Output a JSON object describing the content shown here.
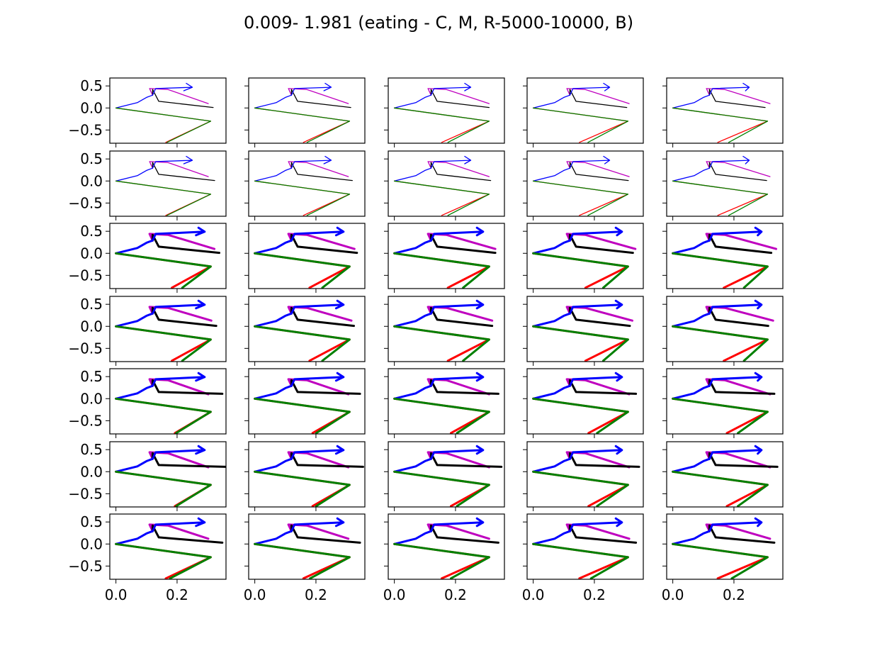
{
  "figure": {
    "title": "0.009- 1.981 (eating - C, M, R-5000-10000, B)"
  },
  "chart_data": {
    "type": "line",
    "title": "0.009- 1.981 (eating - C, M, R-5000-10000, B)",
    "layout": {
      "rows": 7,
      "cols": 5,
      "sharex": true,
      "sharey": true
    },
    "xlim": [
      -0.02,
      0.36
    ],
    "ylim": [
      -0.8,
      0.68
    ],
    "x_ticks": [
      0.0,
      0.2
    ],
    "x_tick_labels": [
      "0.0",
      "0.2"
    ],
    "y_ticks": [
      0.5,
      0.0,
      -0.5
    ],
    "y_tick_labels": [
      "0.5",
      "0.0",
      "−0.5"
    ],
    "grid": false,
    "series_colors": {
      "magenta": "#bf00bf",
      "black": "#000000",
      "blue": "#0000ff",
      "red": "#ff0000",
      "green": "#008000"
    },
    "skeleton": {
      "magenta": [
        [
          0.12,
          0.29
        ],
        [
          0.11,
          0.44
        ],
        [
          0.17,
          0.42
        ],
        [
          0.31,
          0.1
        ]
      ],
      "black": [
        [
          0.12,
          0.29
        ],
        [
          0.12,
          0.42
        ],
        [
          0.14,
          0.15
        ],
        [
          0.31,
          0.01
        ]
      ],
      "blue": [
        [
          0.0,
          0.0
        ],
        [
          0.07,
          0.12
        ],
        [
          0.1,
          0.24
        ],
        [
          0.12,
          0.29
        ],
        [
          0.13,
          0.44
        ],
        [
          0.25,
          0.47
        ],
        [
          0.23,
          0.56
        ],
        [
          0.25,
          0.47
        ],
        [
          0.23,
          0.39
        ]
      ],
      "red": [
        [
          0.0,
          0.0
        ],
        [
          0.31,
          -0.3
        ],
        [
          0.155,
          -0.78
        ]
      ],
      "green": [
        [
          0.0,
          0.0
        ],
        [
          0.31,
          -0.3
        ],
        [
          0.175,
          -0.78
        ]
      ]
    },
    "row_line_weights": [
      1.3,
      1.3,
      3.0,
      3.0,
      3.0,
      3.0,
      3.0
    ],
    "row_variations": [
      {
        "magenta": [
          0,
          0
        ],
        "black": [
          0,
          0
        ],
        "blue": [
          0,
          0
        ],
        "red_end": [
          0,
          0
        ],
        "green_end": [
          0,
          0
        ]
      },
      {
        "magenta": [
          0,
          0
        ],
        "black": [
          0.005,
          0
        ],
        "blue": [
          0,
          0
        ],
        "red_end": [
          0,
          0
        ],
        "green_end": [
          0,
          0
        ]
      },
      {
        "magenta": [
          0.02,
          0
        ],
        "black": [
          0.02,
          0
        ],
        "blue": [
          0.04,
          0.02
        ],
        "red_end": [
          0.02,
          0
        ],
        "green_end": [
          0.05,
          0
        ]
      },
      {
        "magenta": [
          0.01,
          0.03
        ],
        "black": [
          0.01,
          0
        ],
        "blue": [
          0.04,
          0.02
        ],
        "red_end": [
          0.02,
          0
        ],
        "green_end": [
          0.05,
          0
        ]
      },
      {
        "magenta": [
          0,
          0
        ],
        "black": [
          0.03,
          0.1
        ],
        "blue": [
          0.04,
          0.02
        ],
        "red_end": [
          0.03,
          0
        ],
        "green_end": [
          0.03,
          0
        ]
      },
      {
        "magenta": [
          0,
          0
        ],
        "black": [
          0.04,
          0.1
        ],
        "blue": [
          0.04,
          0.02
        ],
        "red_end": [
          0.03,
          0
        ],
        "green_end": [
          0.03,
          0
        ]
      },
      {
        "magenta": [
          0,
          0.02
        ],
        "black": [
          0.03,
          0.02
        ],
        "blue": [
          0.04,
          0.02
        ],
        "red_end": [
          0,
          0
        ],
        "green_end": [
          0.01,
          0
        ]
      }
    ]
  }
}
